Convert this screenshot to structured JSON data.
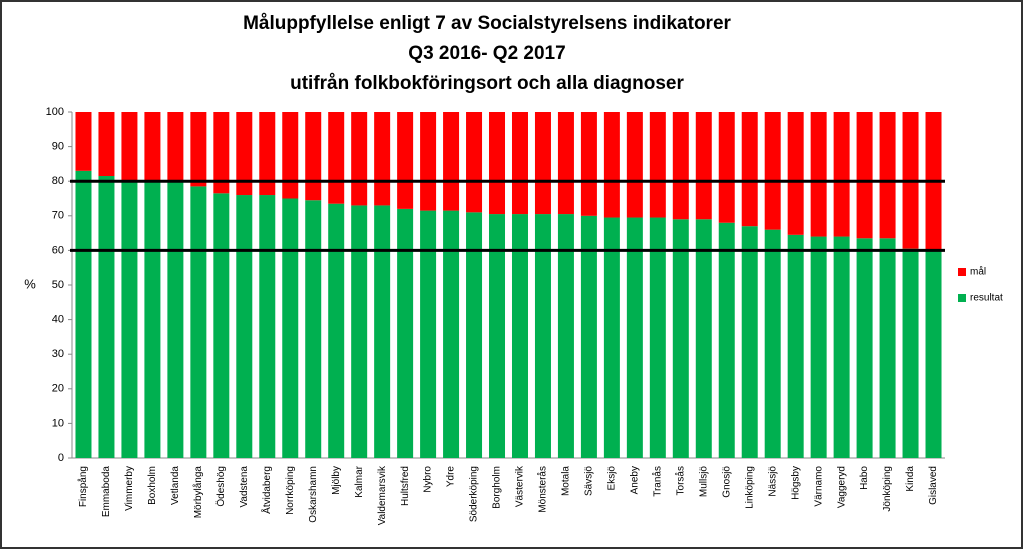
{
  "chart_data": {
    "type": "stacked_bar",
    "title": [
      "Måluppfyllelse enligt 7 av Socialstyrelsens indikatorer",
      "Q3 2016- Q2 2017",
      "utifrån folkbokföringsort och alla diagnoser"
    ],
    "y_label": "%",
    "categories": [
      "Finspång",
      "Emmaboda",
      "Vimmerby",
      "Boxholm",
      "Vetlanda",
      "Mörbylånga",
      "Ödeshög",
      "Vadstena",
      "Åtvidaberg",
      "Norrköping",
      "Oskarshamn",
      "Mjölby",
      "Kalmar",
      "Valdemarsvik",
      "Hultsfred",
      "Nybro",
      "Ydre",
      "Söderköping",
      "Borgholm",
      "Västervik",
      "Mönsterås",
      "Motala",
      "Sävsjö",
      "Eksjö",
      "Aneby",
      "Tranås",
      "Torsås",
      "Mullsjö",
      "Gnosjö",
      "Linköping",
      "Nässjö",
      "Högsby",
      "Värnamo",
      "Vaggeryd",
      "Habo",
      "Jönköping",
      "Kinda",
      "Gislaved"
    ],
    "series": [
      {
        "name": "resultat",
        "color": "#00b050",
        "values": [
          83,
          81.5,
          80,
          80,
          80,
          78.5,
          76.5,
          76,
          76,
          75,
          74.5,
          73.5,
          73,
          73,
          72,
          71.5,
          71.5,
          71,
          70.5,
          70.5,
          70.5,
          70.5,
          70,
          69.5,
          69.5,
          69.5,
          69,
          69,
          68,
          67,
          66,
          64.5,
          64,
          64,
          63.5,
          63.5,
          60.5,
          60
        ]
      },
      {
        "name": "mål",
        "color": "#ff0000",
        "values": [
          17,
          18.5,
          20,
          20,
          20,
          21.5,
          23.5,
          24,
          24,
          25,
          25.5,
          26.5,
          27,
          27,
          28,
          28.5,
          28.5,
          29,
          29.5,
          29.5,
          29.5,
          29.5,
          30,
          30.5,
          30.5,
          30.5,
          31,
          31,
          32,
          33,
          34,
          35.5,
          36,
          36,
          36.5,
          36.5,
          39.5,
          40
        ]
      }
    ],
    "ylim": [
      0,
      100
    ],
    "yticks": [
      0,
      10,
      20,
      30,
      40,
      50,
      60,
      70,
      80,
      90,
      100
    ],
    "reference_lines": [
      60,
      80
    ],
    "grid": false,
    "legend": "right"
  }
}
